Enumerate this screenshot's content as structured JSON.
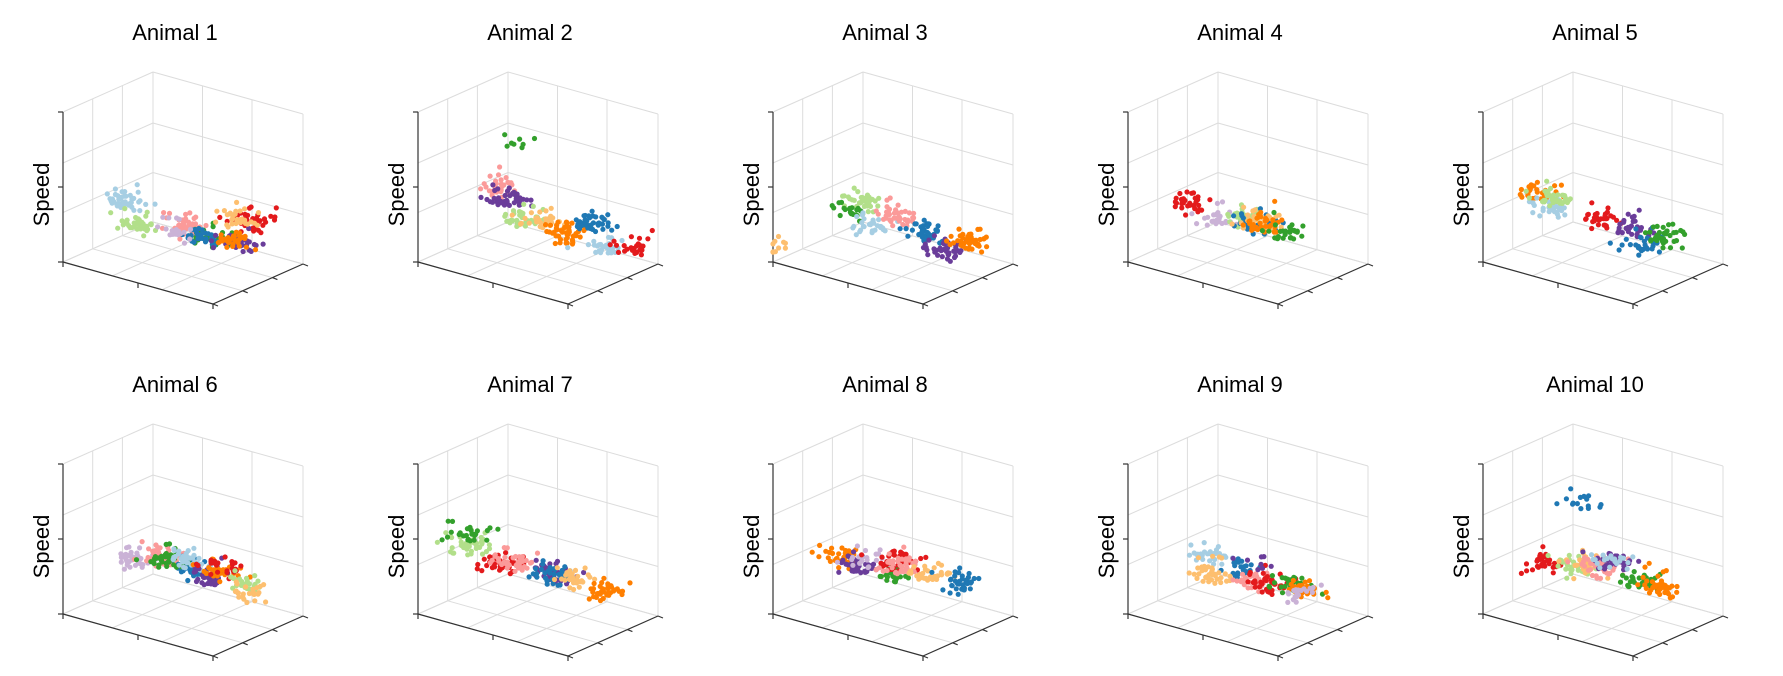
{
  "figure": {
    "panels": [
      {
        "title": "Animal 1",
        "zlabel": "Speed",
        "seed": 11
      },
      {
        "title": "Animal 2",
        "zlabel": "Speed",
        "seed": 23
      },
      {
        "title": "Animal 3",
        "zlabel": "Speed",
        "seed": 37
      },
      {
        "title": "Animal 4",
        "zlabel": "Speed",
        "seed": 41
      },
      {
        "title": "Animal 5",
        "zlabel": "Speed",
        "seed": 53
      },
      {
        "title": "Animal 6",
        "zlabel": "Speed",
        "seed": 67
      },
      {
        "title": "Animal 7",
        "zlabel": "Speed",
        "seed": 71
      },
      {
        "title": "Animal 8",
        "zlabel": "Speed",
        "seed": 83
      },
      {
        "title": "Animal 9",
        "zlabel": "Speed",
        "seed": 97
      },
      {
        "title": "Animal 10",
        "zlabel": "Speed",
        "seed": 103
      }
    ],
    "palette": [
      "#a6cee3",
      "#1f78b4",
      "#b2df8a",
      "#33a02c",
      "#fb9a99",
      "#e31a1c",
      "#fdbf6f",
      "#ff7f00",
      "#cab2d6",
      "#6a3d9a"
    ],
    "grid_color": "#dcdcdc",
    "axis_color": "#333333"
  },
  "chart_data": {
    "type": "scatter",
    "projection": "3d",
    "grid": true,
    "note_values": "Point clouds are approximate: per-panel clusters of states (colors) estimated in normalized units 0-1 on x, y and Speed axes.",
    "panels": [
      {
        "title": "Animal 1",
        "zlabel": "Speed",
        "clusters": [
          {
            "color": "#a6cee3",
            "cx": 0.05,
            "cy": 0.55,
            "cz": 0.25,
            "n": 40
          },
          {
            "color": "#b2df8a",
            "cx": 0.15,
            "cy": 0.55,
            "cz": 0.12,
            "n": 40
          },
          {
            "color": "#e31a1c",
            "cx": 0.85,
            "cy": 0.65,
            "cz": 0.3,
            "n": 45
          },
          {
            "color": "#fb9a99",
            "cx": 0.35,
            "cy": 0.8,
            "cz": 0.1,
            "n": 40
          },
          {
            "color": "#33a02c",
            "cx": 0.55,
            "cy": 0.75,
            "cz": 0.08,
            "n": 35
          },
          {
            "color": "#1f78b4",
            "cx": 0.6,
            "cy": 0.55,
            "cz": 0.15,
            "n": 35
          },
          {
            "color": "#6a3d9a",
            "cx": 0.75,
            "cy": 0.7,
            "cz": 0.12,
            "n": 30
          },
          {
            "color": "#ff7f00",
            "cx": 0.7,
            "cy": 0.75,
            "cz": 0.1,
            "n": 30
          },
          {
            "color": "#fdbf6f",
            "cx": 0.85,
            "cy": 0.5,
            "cz": 0.35,
            "n": 30
          },
          {
            "color": "#cab2d6",
            "cx": 0.45,
            "cy": 0.55,
            "cz": 0.15,
            "n": 20
          }
        ]
      },
      {
        "title": "Animal 2",
        "zlabel": "Speed",
        "clusters": [
          {
            "color": "#fb9a99",
            "cx": 0.45,
            "cy": 0.15,
            "cz": 0.55,
            "n": 35
          },
          {
            "color": "#6a3d9a",
            "cx": 0.45,
            "cy": 0.25,
            "cz": 0.45,
            "n": 45
          },
          {
            "color": "#b2df8a",
            "cx": 0.5,
            "cy": 0.35,
            "cz": 0.3,
            "n": 40
          },
          {
            "color": "#fdbf6f",
            "cx": 0.6,
            "cy": 0.4,
            "cz": 0.3,
            "n": 40
          },
          {
            "color": "#ff7f00",
            "cx": 0.65,
            "cy": 0.55,
            "cz": 0.18,
            "n": 45
          },
          {
            "color": "#1f78b4",
            "cx": 0.9,
            "cy": 0.45,
            "cz": 0.35,
            "n": 40
          },
          {
            "color": "#a6cee3",
            "cx": 0.95,
            "cy": 0.5,
            "cz": 0.2,
            "n": 30
          },
          {
            "color": "#e31a1c",
            "cx": 0.95,
            "cy": 0.8,
            "cz": 0.1,
            "n": 25
          },
          {
            "color": "#33a02c",
            "cx": 0.55,
            "cy": 0.2,
            "cz": 0.85,
            "n": 8
          }
        ]
      },
      {
        "title": "Animal 3",
        "zlabel": "Speed",
        "clusters": [
          {
            "color": "#b2df8a",
            "cx": 0.4,
            "cy": 0.3,
            "cz": 0.4,
            "n": 35
          },
          {
            "color": "#33a02c",
            "cx": 0.3,
            "cy": 0.35,
            "cz": 0.3,
            "n": 20
          },
          {
            "color": "#a6cee3",
            "cx": 0.3,
            "cy": 0.55,
            "cz": 0.15,
            "n": 30
          },
          {
            "color": "#fb9a99",
            "cx": 0.6,
            "cy": 0.35,
            "cz": 0.35,
            "n": 40
          },
          {
            "color": "#1f78b4",
            "cx": 0.75,
            "cy": 0.45,
            "cz": 0.25,
            "n": 40
          },
          {
            "color": "#6a3d9a",
            "cx": 0.85,
            "cy": 0.5,
            "cz": 0.15,
            "n": 40
          },
          {
            "color": "#ff7f00",
            "cx": 0.8,
            "cy": 0.85,
            "cz": 0.1,
            "n": 45
          },
          {
            "color": "#fdbf6f",
            "cx": 0.0,
            "cy": 0.0,
            "cz": 0.05,
            "n": 10
          }
        ]
      },
      {
        "title": "Animal 4",
        "zlabel": "Speed",
        "clusters": [
          {
            "color": "#e31a1c",
            "cx": 0.05,
            "cy": 0.6,
            "cz": 0.2,
            "n": 30
          },
          {
            "color": "#cab2d6",
            "cx": 0.2,
            "cy": 0.65,
            "cz": 0.15,
            "n": 25
          },
          {
            "color": "#b2df8a",
            "cx": 0.25,
            "cy": 0.85,
            "cz": 0.1,
            "n": 30
          },
          {
            "color": "#1f78b4",
            "cx": 0.45,
            "cy": 0.7,
            "cz": 0.15,
            "n": 30
          },
          {
            "color": "#fdbf6f",
            "cx": 0.55,
            "cy": 0.55,
            "cz": 0.25,
            "n": 30
          },
          {
            "color": "#ff7f00",
            "cx": 0.65,
            "cy": 0.4,
            "cz": 0.3,
            "n": 35
          },
          {
            "color": "#33a02c",
            "cx": 0.5,
            "cy": 0.95,
            "cz": 0.05,
            "n": 30
          }
        ]
      },
      {
        "title": "Animal 5",
        "zlabel": "Speed",
        "clusters": [
          {
            "color": "#ff7f00",
            "cx": 0.05,
            "cy": 0.5,
            "cz": 0.3,
            "n": 35
          },
          {
            "color": "#a6cee3",
            "cx": 0.1,
            "cy": 0.6,
            "cz": 0.2,
            "n": 35
          },
          {
            "color": "#b2df8a",
            "cx": 0.3,
            "cy": 0.3,
            "cz": 0.4,
            "n": 35
          },
          {
            "color": "#e31a1c",
            "cx": 0.35,
            "cy": 0.7,
            "cz": 0.15,
            "n": 30
          },
          {
            "color": "#6a3d9a",
            "cx": 0.7,
            "cy": 0.5,
            "cz": 0.25,
            "n": 30
          },
          {
            "color": "#1f78b4",
            "cx": 0.75,
            "cy": 0.55,
            "cz": 0.15,
            "n": 30
          },
          {
            "color": "#33a02c",
            "cx": 0.7,
            "cy": 0.85,
            "cz": 0.1,
            "n": 35
          }
        ]
      },
      {
        "title": "Animal 6",
        "zlabel": "Speed",
        "clusters": [
          {
            "color": "#cab2d6",
            "cx": 0.05,
            "cy": 0.7,
            "cz": 0.15,
            "n": 40
          },
          {
            "color": "#fb9a99",
            "cx": 0.2,
            "cy": 0.75,
            "cz": 0.2,
            "n": 40
          },
          {
            "color": "#1f78b4",
            "cx": 0.4,
            "cy": 0.7,
            "cz": 0.2,
            "n": 40
          },
          {
            "color": "#33a02c",
            "cx": 0.45,
            "cy": 0.4,
            "cz": 0.35,
            "n": 35
          },
          {
            "color": "#a6cee3",
            "cx": 0.6,
            "cy": 0.35,
            "cz": 0.4,
            "n": 40
          },
          {
            "color": "#6a3d9a",
            "cx": 0.65,
            "cy": 0.55,
            "cz": 0.25,
            "n": 40
          },
          {
            "color": "#ff7f00",
            "cx": 0.85,
            "cy": 0.35,
            "cz": 0.4,
            "n": 35
          },
          {
            "color": "#e31a1c",
            "cx": 0.9,
            "cy": 0.3,
            "cz": 0.45,
            "n": 25
          },
          {
            "color": "#b2df8a",
            "cx": 0.9,
            "cy": 0.5,
            "cz": 0.3,
            "n": 25
          },
          {
            "color": "#fdbf6f",
            "cx": 0.7,
            "cy": 0.9,
            "cz": 0.05,
            "n": 25
          }
        ]
      },
      {
        "title": "Animal 7",
        "zlabel": "Speed",
        "clusters": [
          {
            "color": "#b2df8a",
            "cx": 0.1,
            "cy": 0.4,
            "cz": 0.35,
            "n": 40
          },
          {
            "color": "#e31a1c",
            "cx": 0.15,
            "cy": 0.7,
            "cz": 0.15,
            "n": 40
          },
          {
            "color": "#fb9a99",
            "cx": 0.3,
            "cy": 0.55,
            "cz": 0.25,
            "n": 40
          },
          {
            "color": "#33a02c",
            "cx": 0.15,
            "cy": 0.3,
            "cz": 0.45,
            "n": 25
          },
          {
            "color": "#6a3d9a",
            "cx": 0.45,
            "cy": 0.75,
            "cz": 0.15,
            "n": 40
          },
          {
            "color": "#1f78b4",
            "cx": 0.6,
            "cy": 0.5,
            "cz": 0.25,
            "n": 40
          },
          {
            "color": "#fdbf6f",
            "cx": 0.7,
            "cy": 0.55,
            "cz": 0.25,
            "n": 30
          },
          {
            "color": "#ff7f00",
            "cx": 0.9,
            "cy": 0.6,
            "cz": 0.2,
            "n": 35
          }
        ]
      },
      {
        "title": "Animal 8",
        "zlabel": "Speed",
        "clusters": [
          {
            "color": "#ff7f00",
            "cx": 0.15,
            "cy": 0.5,
            "cz": 0.25,
            "n": 35
          },
          {
            "color": "#6a3d9a",
            "cx": 0.1,
            "cy": 0.8,
            "cz": 0.1,
            "n": 40
          },
          {
            "color": "#33a02c",
            "cx": 0.25,
            "cy": 0.95,
            "cz": 0.05,
            "n": 25
          },
          {
            "color": "#cab2d6",
            "cx": 0.35,
            "cy": 0.45,
            "cz": 0.3,
            "n": 20
          },
          {
            "color": "#e31a1c",
            "cx": 0.55,
            "cy": 0.45,
            "cz": 0.35,
            "n": 40
          },
          {
            "color": "#fb9a99",
            "cx": 0.6,
            "cy": 0.4,
            "cz": 0.35,
            "n": 40
          },
          {
            "color": "#fdbf6f",
            "cx": 0.8,
            "cy": 0.4,
            "cz": 0.35,
            "n": 35
          },
          {
            "color": "#1f78b4",
            "cx": 0.95,
            "cy": 0.5,
            "cz": 0.3,
            "n": 35
          }
        ]
      },
      {
        "title": "Animal 9",
        "zlabel": "Speed",
        "clusters": [
          {
            "color": "#a6cee3",
            "cx": 0.4,
            "cy": 0.25,
            "cz": 0.4,
            "n": 30
          },
          {
            "color": "#1f78b4",
            "cx": 0.5,
            "cy": 0.4,
            "cz": 0.3,
            "n": 25
          },
          {
            "color": "#fdbf6f",
            "cx": 0.15,
            "cy": 0.65,
            "cz": 0.1,
            "n": 40
          },
          {
            "color": "#fb9a99",
            "cx": 0.4,
            "cy": 0.75,
            "cz": 0.1,
            "n": 40
          },
          {
            "color": "#e31a1c",
            "cx": 0.6,
            "cy": 0.55,
            "cz": 0.2,
            "n": 35
          },
          {
            "color": "#33a02c",
            "cx": 0.8,
            "cy": 0.5,
            "cz": 0.25,
            "n": 30
          },
          {
            "color": "#ff7f00",
            "cx": 0.75,
            "cy": 0.7,
            "cz": 0.15,
            "n": 35
          },
          {
            "color": "#cab2d6",
            "cx": 0.95,
            "cy": 0.3,
            "cz": 0.3,
            "n": 20
          },
          {
            "color": "#6a3d9a",
            "cx": 0.7,
            "cy": 0.3,
            "cz": 0.4,
            "n": 8
          }
        ]
      },
      {
        "title": "Animal 10",
        "zlabel": "Speed",
        "clusters": [
          {
            "color": "#e31a1c",
            "cx": 0.05,
            "cy": 0.6,
            "cz": 0.15,
            "n": 30
          },
          {
            "color": "#b2df8a",
            "cx": 0.2,
            "cy": 0.7,
            "cz": 0.15,
            "n": 30
          },
          {
            "color": "#fdbf6f",
            "cx": 0.35,
            "cy": 0.55,
            "cz": 0.25,
            "n": 30
          },
          {
            "color": "#fb9a99",
            "cx": 0.5,
            "cy": 0.45,
            "cz": 0.3,
            "n": 40
          },
          {
            "color": "#33a02c",
            "cx": 0.55,
            "cy": 0.85,
            "cz": 0.1,
            "n": 30
          },
          {
            "color": "#6a3d9a",
            "cx": 0.65,
            "cy": 0.35,
            "cz": 0.4,
            "n": 40
          },
          {
            "color": "#ff7f00",
            "cx": 0.8,
            "cy": 0.65,
            "cz": 0.2,
            "n": 40
          },
          {
            "color": "#a6cee3",
            "cx": 0.7,
            "cy": 0.25,
            "cz": 0.45,
            "n": 20
          },
          {
            "color": "#1f78b4",
            "cx": 0.55,
            "cy": 0.2,
            "cz": 0.8,
            "n": 15
          }
        ]
      }
    ]
  }
}
